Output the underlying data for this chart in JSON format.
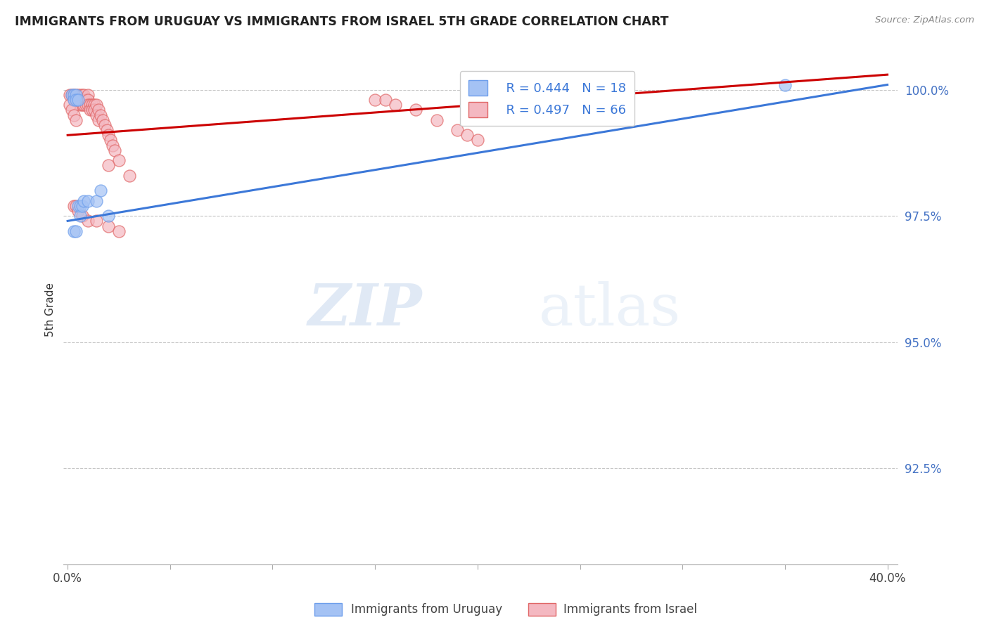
{
  "title": "IMMIGRANTS FROM URUGUAY VS IMMIGRANTS FROM ISRAEL 5TH GRADE CORRELATION CHART",
  "source": "Source: ZipAtlas.com",
  "ylabel": "5th Grade",
  "yaxis_labels": [
    "100.0%",
    "97.5%",
    "95.0%",
    "92.5%"
  ],
  "yaxis_values": [
    1.0,
    0.975,
    0.95,
    0.925
  ],
  "xaxis_ticks": [
    0.0,
    0.05,
    0.1,
    0.15,
    0.2,
    0.25,
    0.3,
    0.35,
    0.4
  ],
  "xlim": [
    -0.002,
    0.405
  ],
  "ylim": [
    0.906,
    1.007
  ],
  "legend_blue_label": "Immigrants from Uruguay",
  "legend_pink_label": "Immigrants from Israel",
  "blue_R": "R = 0.444",
  "blue_N": "N = 18",
  "pink_R": "R = 0.497",
  "pink_N": "N = 66",
  "blue_color": "#a4c2f4",
  "pink_color": "#f4b8c1",
  "blue_edge_color": "#6d9eeb",
  "pink_edge_color": "#e06666",
  "blue_line_color": "#3c78d8",
  "pink_line_color": "#cc0000",
  "watermark_zip": "ZIP",
  "watermark_atlas": "atlas",
  "blue_line_x0": 0.0,
  "blue_line_y0": 0.974,
  "blue_line_x1": 0.4,
  "blue_line_y1": 1.001,
  "pink_line_x0": 0.0,
  "pink_line_y0": 0.991,
  "pink_line_x1": 0.4,
  "pink_line_y1": 1.003,
  "blue_scatter_x": [
    0.002,
    0.003,
    0.003,
    0.004,
    0.004,
    0.005,
    0.005,
    0.006,
    0.006,
    0.007,
    0.008,
    0.01,
    0.014,
    0.016,
    0.02,
    0.35,
    0.003,
    0.004
  ],
  "blue_scatter_y": [
    0.999,
    0.999,
    0.998,
    0.999,
    0.998,
    0.998,
    0.977,
    0.977,
    0.975,
    0.977,
    0.978,
    0.978,
    0.978,
    0.98,
    0.975,
    1.001,
    0.972,
    0.972
  ],
  "pink_scatter_x": [
    0.001,
    0.002,
    0.003,
    0.003,
    0.003,
    0.004,
    0.004,
    0.004,
    0.005,
    0.005,
    0.005,
    0.006,
    0.006,
    0.006,
    0.006,
    0.007,
    0.007,
    0.007,
    0.008,
    0.008,
    0.009,
    0.009,
    0.01,
    0.01,
    0.01,
    0.011,
    0.011,
    0.012,
    0.012,
    0.013,
    0.013,
    0.014,
    0.014,
    0.015,
    0.015,
    0.016,
    0.017,
    0.018,
    0.019,
    0.02,
    0.021,
    0.022,
    0.023,
    0.025,
    0.03,
    0.15,
    0.155,
    0.16,
    0.17,
    0.18,
    0.19,
    0.195,
    0.2,
    0.001,
    0.002,
    0.003,
    0.004,
    0.02,
    0.003,
    0.004,
    0.005,
    0.007,
    0.01,
    0.014,
    0.02,
    0.025
  ],
  "pink_scatter_y": [
    0.999,
    0.999,
    0.999,
    0.999,
    0.998,
    0.999,
    0.998,
    0.998,
    0.999,
    0.998,
    0.998,
    0.999,
    0.998,
    0.998,
    0.997,
    0.999,
    0.998,
    0.997,
    0.999,
    0.997,
    0.998,
    0.997,
    0.999,
    0.998,
    0.997,
    0.997,
    0.996,
    0.997,
    0.996,
    0.997,
    0.996,
    0.997,
    0.995,
    0.996,
    0.994,
    0.995,
    0.994,
    0.993,
    0.992,
    0.991,
    0.99,
    0.989,
    0.988,
    0.986,
    0.983,
    0.998,
    0.998,
    0.997,
    0.996,
    0.994,
    0.992,
    0.991,
    0.99,
    0.997,
    0.996,
    0.995,
    0.994,
    0.985,
    0.977,
    0.977,
    0.976,
    0.975,
    0.974,
    0.974,
    0.973,
    0.972
  ]
}
